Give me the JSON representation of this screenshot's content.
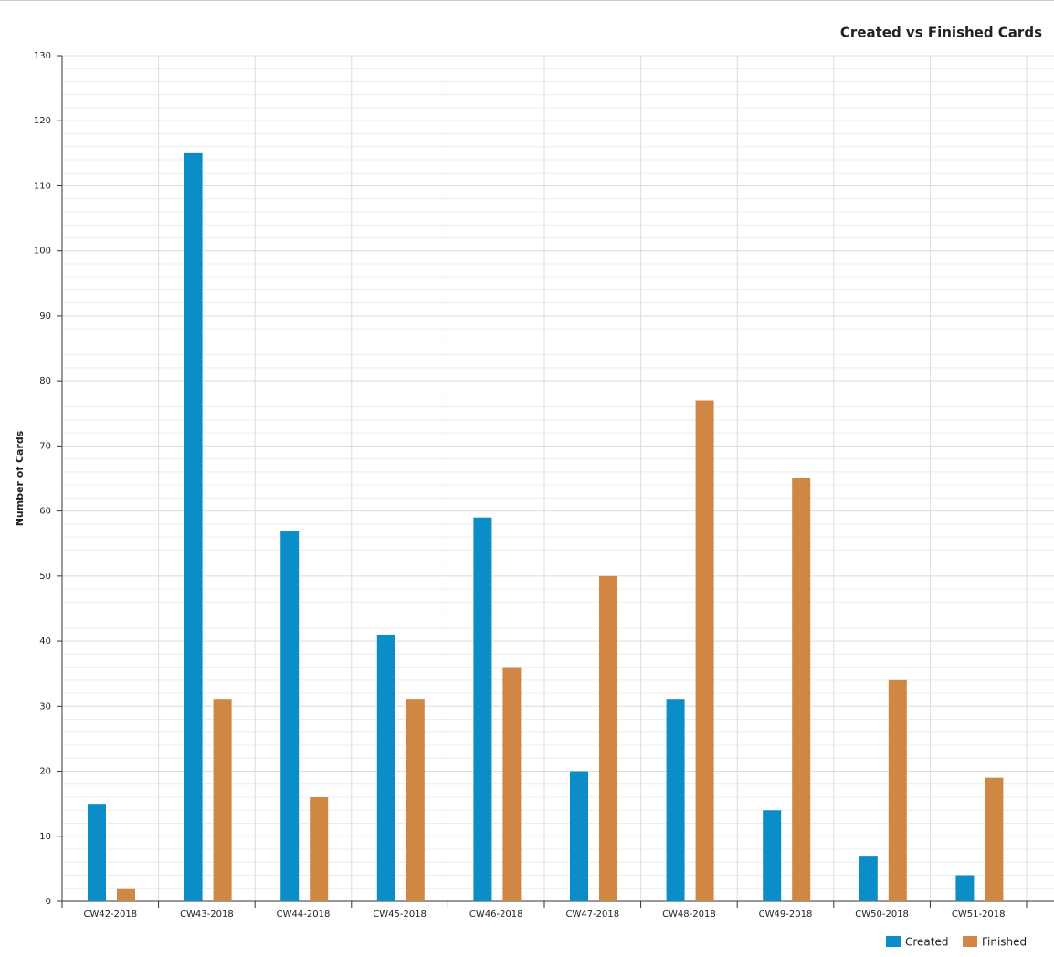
{
  "chart_data": {
    "type": "bar",
    "title": "Created vs Finished Cards",
    "y_label": "Number of Cards",
    "categories": [
      "CW42-2018",
      "CW43-2018",
      "CW44-2018",
      "CW45-2018",
      "CW46-2018",
      "CW47-2018",
      "CW48-2018",
      "CW49-2018",
      "CW50-2018",
      "CW51-2018"
    ],
    "series": [
      {
        "name": "Created",
        "color": "#0b8dc7",
        "values": [
          15,
          115,
          57,
          41,
          59,
          20,
          31,
          14,
          7,
          4
        ]
      },
      {
        "name": "Finished",
        "color": "#cf8743",
        "values": [
          2,
          31,
          16,
          31,
          36,
          50,
          77,
          65,
          34,
          19
        ]
      }
    ],
    "ylim": [
      0,
      130
    ],
    "yticks": [
      0,
      10,
      20,
      30,
      40,
      50,
      60,
      70,
      80,
      90,
      100,
      110,
      120,
      130
    ],
    "grid": true,
    "legend": "bottom-right"
  }
}
